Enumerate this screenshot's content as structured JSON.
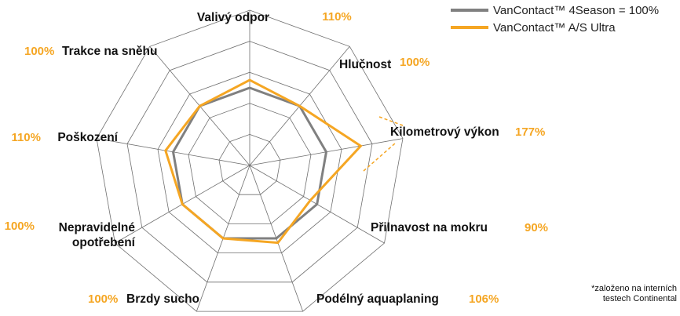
{
  "chart_data": {
    "type": "radar",
    "title": "",
    "axes": [
      "Valivý odpor",
      "Hlučnost",
      "Kilometrový výkon",
      "Přilnavost na mokru",
      "Podélný aquaplaning",
      "Brzdy sucho",
      "Nepravidelné opotřebení",
      "Poškození",
      "Trakce na sněhu"
    ],
    "axis_label_lines": [
      [
        "Valivý odpor"
      ],
      [
        "Hlučnost"
      ],
      [
        "Kilometrový výkon"
      ],
      [
        "Přilnavost na mokru"
      ],
      [
        "Podélný aquaplaning"
      ],
      [
        "Brzdy sucho"
      ],
      [
        "Nepravidelné",
        "opotřebení"
      ],
      [
        "Poškození"
      ],
      [
        "Trakce na sněhu"
      ]
    ],
    "value_labels": [
      "110%",
      "100%",
      "177%",
      "90%",
      "106%",
      "100%",
      "100%",
      "110%",
      "100%"
    ],
    "series": [
      {
        "name": "VanContact™ 4Season = 100%",
        "color": "#808080",
        "values": [
          100,
          100,
          100,
          100,
          100,
          100,
          100,
          100,
          100
        ]
      },
      {
        "name": "VanContact™ A/S Ultra",
        "color": "#F5A623",
        "values": [
          110,
          100,
          177,
          90,
          106,
          100,
          100,
          110,
          100
        ]
      }
    ],
    "rmax": 200,
    "rings": 5,
    "clipped_axis_index": 2,
    "clipped_display_value": 145,
    "legend_position": "top-right",
    "footnote_lines": [
      "*založeno na interních",
      "testech Continental"
    ]
  }
}
